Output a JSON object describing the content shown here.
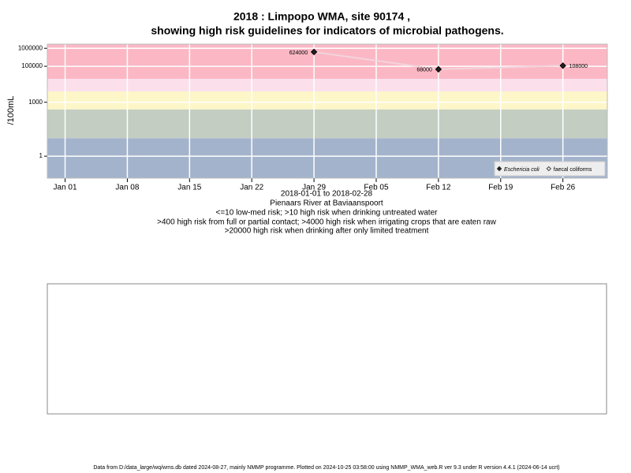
{
  "chart_data": {
    "type": "line",
    "title": "2018 : Limpopo WMA, site 90174 ,",
    "subtitle": "showing high risk guidelines for indicators of microbial pathogens.",
    "y_label": "/100mL",
    "x_label": "2018-01-01 to 2018-02-28",
    "site": "Pienaars River at Baviaanspoort",
    "notes": [
      "<=10 low-med risk; >10 high risk when drinking untreated water",
      ">400 high risk from full or partial contact; >4000 high risk when irrigating crops that are eaten raw",
      ">20000 high risk when drinking after only limited treatment"
    ],
    "x": [
      "2018-01-29",
      "2018-02-12",
      "2018-02-26"
    ],
    "series": [
      {
        "name": "Eschericia coli",
        "color": "#222222",
        "line_color": "#f2d4dc",
        "marker": "filled-diamond",
        "values": [
          624000,
          68000,
          108000
        ]
      },
      {
        "name": "faecal coliforms",
        "color": "#444444",
        "marker": "open-diamond",
        "values": [
          null,
          null,
          null
        ]
      }
    ],
    "log_y": true,
    "ylim": [
      0.06,
      1700000
    ],
    "yticks": [
      1,
      1000,
      100000,
      1000000
    ],
    "xlim": [
      "2017-12-30",
      "2018-03-03"
    ],
    "xticks": [
      {
        "value": "2018-01-01",
        "label": "Jan 01"
      },
      {
        "value": "2018-01-08",
        "label": "Jan 08"
      },
      {
        "value": "2018-01-15",
        "label": "Jan 15"
      },
      {
        "value": "2018-01-22",
        "label": "Jan 22"
      },
      {
        "value": "2018-01-29",
        "label": "Jan 29"
      },
      {
        "value": "2018-02-05",
        "label": "Feb 05"
      },
      {
        "value": "2018-02-12",
        "label": "Feb 12"
      },
      {
        "value": "2018-02-19",
        "label": "Feb 19"
      },
      {
        "value": "2018-02-26",
        "label": "Feb 26"
      }
    ],
    "grid": true,
    "legend": "bottom-right",
    "band_thresholds": [
      10,
      400,
      4000,
      20000
    ],
    "band_colors": [
      "#a3b3cc",
      "#c3cdc2",
      "#fdf6c8",
      "#fbe0ec",
      "#fbb8c4"
    ],
    "footer": "Data from D:/data_large/wq/wms.db dated 2024-08-27, mainly NMMP programme. Plotted on 2024-10-25 03:58:00 using NMMP_WMA_web.R ver 9.3 under R version 4.4.1 (2024-06-14 ucrt)"
  }
}
